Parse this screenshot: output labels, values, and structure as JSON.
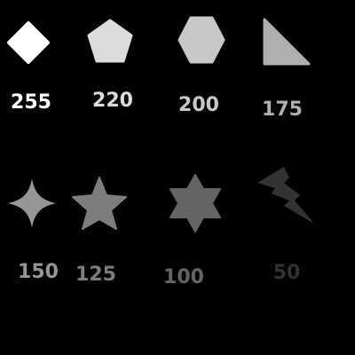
{
  "shapes": [
    {
      "shape": "diamond",
      "label": "255",
      "color": "#ffffff"
    },
    {
      "shape": "pentagon",
      "label": "220",
      "color": "#dcdcdc"
    },
    {
      "shape": "hexagon",
      "label": "200",
      "color": "#c8c8c8"
    },
    {
      "shape": "triangle",
      "label": "175",
      "color": "#afafaf"
    },
    {
      "shape": "star-4",
      "label": "150",
      "color": "#969696"
    },
    {
      "shape": "star-5",
      "label": "125",
      "color": "#7d7d7d"
    },
    {
      "shape": "star-6",
      "label": "100",
      "color": "#646464"
    },
    {
      "shape": "lightning",
      "label": "50",
      "color": "#323232"
    }
  ]
}
